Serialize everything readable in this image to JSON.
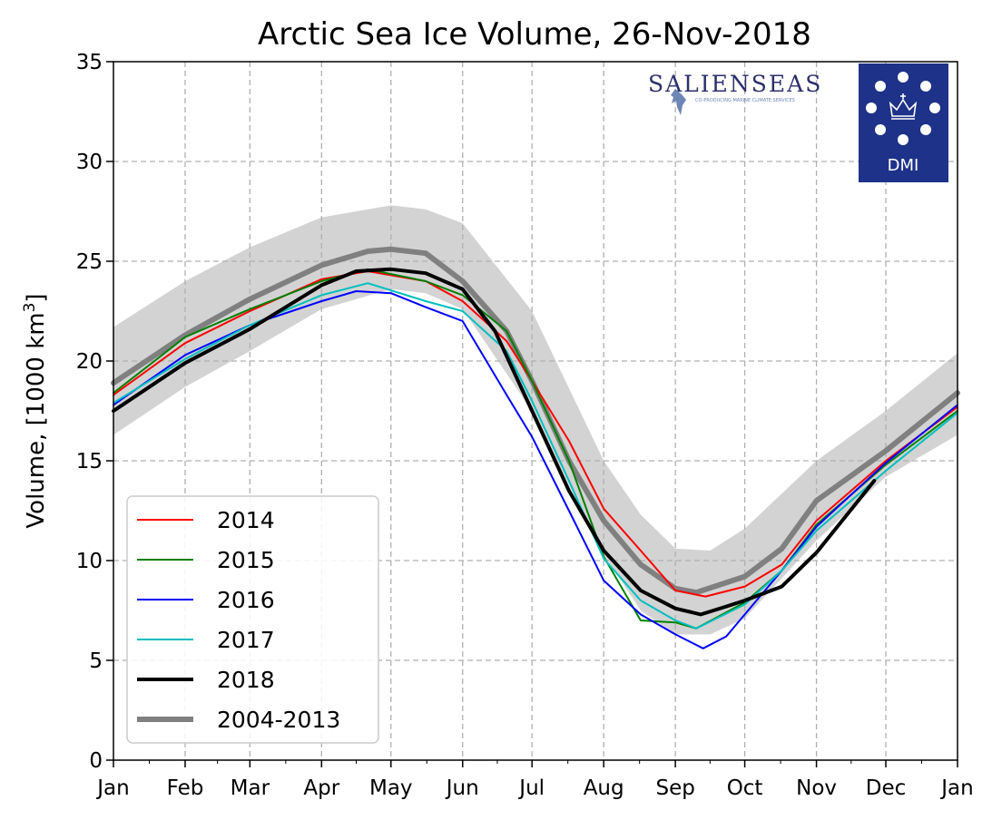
{
  "chart_data": {
    "type": "line",
    "title": "Arctic Sea Ice Volume, 26-Nov-2018",
    "ylabel": "Volume, [1000 km",
    "ylabel_sup": "3",
    "ylabel_end": "]",
    "ylim": [
      0,
      35
    ],
    "yticks": [
      0,
      5,
      10,
      15,
      20,
      25,
      30,
      35
    ],
    "xlim": [
      0,
      365
    ],
    "month_labels": [
      "Jan",
      "Feb",
      "Mar",
      "Apr",
      "May",
      "Jun",
      "Jul",
      "Aug",
      "Sep",
      "Oct",
      "Nov",
      "Dec",
      "Jan"
    ],
    "month_days": [
      0,
      31,
      59,
      90,
      120,
      151,
      181,
      212,
      243,
      273,
      304,
      334,
      365
    ],
    "grid": true,
    "legend_position": "lower-left",
    "band": {
      "name": "",
      "color": "#d3d3d3",
      "x": [
        0,
        31,
        59,
        90,
        120,
        135,
        151,
        181,
        212,
        228,
        243,
        258,
        273,
        304,
        334,
        365
      ],
      "upper": [
        21.7,
        24.0,
        25.7,
        27.2,
        27.8,
        27.6,
        26.9,
        22.5,
        15.0,
        12.3,
        10.6,
        10.5,
        11.6,
        15.0,
        17.5,
        20.4
      ],
      "lower": [
        16.3,
        18.7,
        20.5,
        22.6,
        23.6,
        23.4,
        22.6,
        17.5,
        10.3,
        7.5,
        6.3,
        6.3,
        7.1,
        11.0,
        14.2,
        16.3
      ]
    },
    "series": [
      {
        "name": "2014",
        "color": "#ff0000",
        "width": 2,
        "x": [
          0,
          31,
          59,
          90,
          110,
          135,
          151,
          170,
          181,
          197,
          212,
          228,
          243,
          256,
          273,
          289,
          304,
          334,
          365
        ],
        "y": [
          18.3,
          20.9,
          22.5,
          24.1,
          24.5,
          24.0,
          23.0,
          21.0,
          19.0,
          16.0,
          12.6,
          10.5,
          8.5,
          8.2,
          8.7,
          9.8,
          12.0,
          15.0,
          17.7
        ]
      },
      {
        "name": "2015",
        "color": "#008000",
        "width": 2,
        "x": [
          0,
          31,
          59,
          90,
          110,
          135,
          151,
          170,
          181,
          197,
          212,
          228,
          243,
          252,
          273,
          289,
          304,
          334,
          365
        ],
        "y": [
          18.4,
          21.2,
          22.6,
          24.0,
          24.6,
          24.0,
          23.3,
          21.5,
          19.0,
          15.0,
          10.2,
          7.0,
          6.9,
          6.6,
          7.9,
          9.5,
          11.8,
          14.8,
          17.5
        ]
      },
      {
        "name": "2016",
        "color": "#0000ff",
        "width": 2,
        "x": [
          0,
          31,
          59,
          90,
          105,
          120,
          135,
          151,
          170,
          181,
          197,
          212,
          228,
          243,
          255,
          265,
          273,
          289,
          304,
          334,
          365
        ],
        "y": [
          17.8,
          20.3,
          21.8,
          23.0,
          23.5,
          23.4,
          22.7,
          22.0,
          18.3,
          16.2,
          12.5,
          9.0,
          7.3,
          6.3,
          5.6,
          6.2,
          7.3,
          9.5,
          11.7,
          14.9,
          17.8
        ]
      },
      {
        "name": "2017",
        "color": "#00bfbf",
        "width": 2,
        "x": [
          0,
          31,
          59,
          90,
          110,
          135,
          151,
          170,
          181,
          197,
          212,
          228,
          243,
          252,
          273,
          289,
          304,
          334,
          365
        ],
        "y": [
          17.9,
          20.1,
          21.8,
          23.3,
          23.9,
          23.0,
          22.5,
          20.5,
          18.0,
          14.0,
          10.1,
          8.0,
          7.0,
          6.6,
          7.8,
          9.5,
          11.5,
          14.5,
          17.4
        ]
      },
      {
        "name": "2018",
        "color": "#000000",
        "width": 4,
        "x": [
          0,
          31,
          59,
          90,
          105,
          120,
          135,
          151,
          165,
          181,
          197,
          212,
          228,
          243,
          254,
          265,
          273,
          289,
          304,
          329
        ],
        "y": [
          17.5,
          19.9,
          21.6,
          23.8,
          24.5,
          24.6,
          24.4,
          23.6,
          21.5,
          17.5,
          13.5,
          10.5,
          8.5,
          7.6,
          7.3,
          7.7,
          8.0,
          8.7,
          10.4,
          14.0
        ]
      },
      {
        "name": "2004-2013",
        "color": "#808080",
        "width": 6,
        "x": [
          0,
          31,
          59,
          90,
          110,
          120,
          135,
          151,
          170,
          181,
          197,
          212,
          228,
          243,
          252,
          273,
          289,
          304,
          334,
          365
        ],
        "y": [
          18.9,
          21.3,
          23.1,
          24.8,
          25.5,
          25.6,
          25.4,
          24.0,
          21.5,
          19.0,
          15.0,
          12.0,
          9.8,
          8.6,
          8.4,
          9.2,
          10.6,
          13.0,
          15.5,
          18.4
        ]
      }
    ]
  },
  "logos": {
    "salienseas_text": "SALIENSEAS",
    "salienseas_tagline": "CO-PRODUCING MARINE CLIMATE SERVICES",
    "dmi_text": "DMI"
  }
}
